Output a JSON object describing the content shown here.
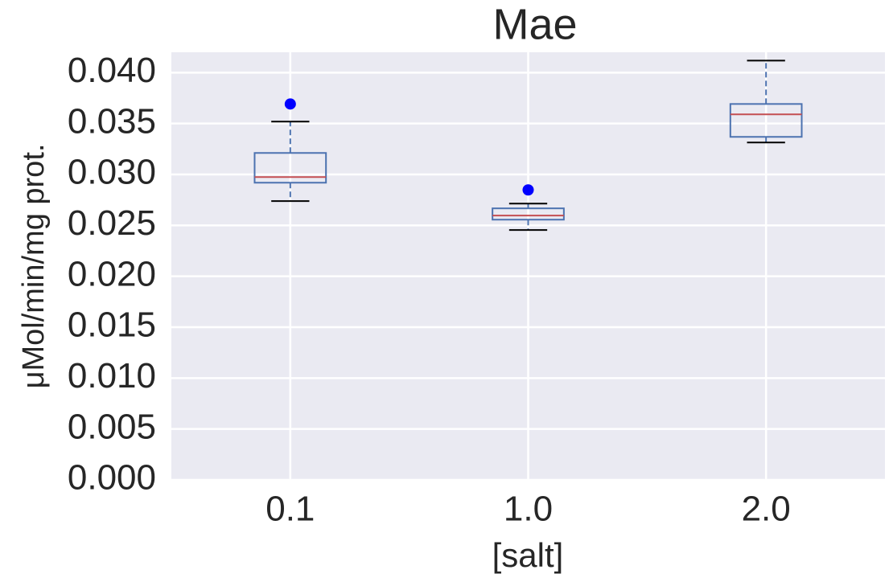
{
  "chart_data": {
    "type": "box",
    "title": "Mae",
    "xlabel": "[salt]",
    "ylabel": "μMol/min/mg prot.",
    "categories": [
      "0.1",
      "1.0",
      "2.0"
    ],
    "boxes": [
      {
        "min": 0.02738,
        "q1": 0.02919,
        "median": 0.02974,
        "q3": 0.03211,
        "max": 0.03519,
        "outliers": [
          0.03692
        ]
      },
      {
        "min": 0.02454,
        "q1": 0.02556,
        "median": 0.02596,
        "q3": 0.02667,
        "max": 0.02714,
        "outliers": [
          0.02848
        ]
      },
      {
        "min": 0.03314,
        "q1": 0.03369,
        "median": 0.0359,
        "q3": 0.03692,
        "max": 0.04118,
        "outliers": []
      }
    ],
    "box_color": "#4c72b0",
    "median_color": "#c44e52",
    "cap_color": "#000000",
    "outlier_color": "#0000ff",
    "ylim": [
      0,
      0.042
    ],
    "yticks": [
      {
        "value": 0,
        "label": "0.000"
      },
      0.005,
      {
        "value": 0.01,
        "label": "0.010"
      },
      0.015,
      {
        "value": 0.02,
        "label": "0.020"
      },
      0.025,
      {
        "value": 0.03,
        "label": "0.030"
      },
      0.035,
      {
        "value": 0.04,
        "label": "0.040"
      }
    ],
    "grid": true
  }
}
